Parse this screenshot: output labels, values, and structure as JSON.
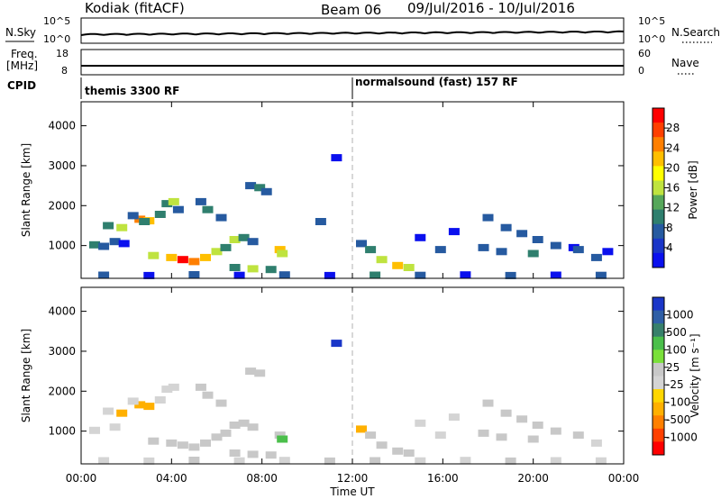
{
  "header": {
    "radar": "Kodiak (fitACF)",
    "beam": "Beam 06",
    "dates": "09/Jul/2016 - 10/Jul/2016"
  },
  "top_panel": {
    "left_label": "N.Sky",
    "right_label": "N.Search",
    "y_ticks_left": [
      "10^5",
      "10^0"
    ],
    "y_ticks_right": [
      "10^5",
      "10^0"
    ]
  },
  "freq_panel": {
    "left_label_1": "Freq.",
    "left_label_2": "[MHz]",
    "right_label": "Nave",
    "y_ticks_left": [
      "18",
      "8"
    ],
    "y_ticks_right": [
      "60",
      "0"
    ]
  },
  "cpid": {
    "label": "CPID",
    "segments": [
      {
        "name": "themis 3300 RF",
        "start_hour": 0
      },
      {
        "name": "normalsound (fast) 157 RF",
        "start_hour": 12
      }
    ]
  },
  "power_panel": {
    "ylabel": "Slant Range [km]",
    "colorbar_label": "Power [dB]",
    "colorbar_ticks": [
      "28",
      "24",
      "20",
      "16",
      "12",
      "8",
      "4"
    ],
    "colorbar_colors": [
      "#ff0000",
      "#ff3f00",
      "#ff7f00",
      "#ffbf00",
      "#ffff00",
      "#bfe33f",
      "#56a75a",
      "#2f7f6e",
      "#265aa0",
      "#1a36c8",
      "#0a10ee"
    ]
  },
  "velocity_panel": {
    "ylabel": "Slant Range [km]",
    "colorbar_label": "Velocity [m s⁻¹]",
    "colorbar_ticks": [
      "1000",
      "500",
      "100",
      "25",
      "-25",
      "-100",
      "-500",
      "-1000"
    ],
    "colorbar_colors": [
      "#1a36c8",
      "#2f5fa6",
      "#37806b",
      "#4bbf4b",
      "#7ae03a",
      "#c8c8c8",
      "#d4d4d4",
      "#ffd700",
      "#ffb000",
      "#ff8000",
      "#ff4000",
      "#ff0000"
    ]
  },
  "xaxis": {
    "xlabel": "Time UT",
    "ticks": [
      "00:00",
      "04:00",
      "08:00",
      "12:00",
      "16:00",
      "20:00",
      "00:00"
    ]
  },
  "chart_data": [
    {
      "type": "scatter",
      "title": "Power",
      "ylabel": "Slant Range [km]",
      "ylim": [
        180,
        4600
      ],
      "xlim_hours": [
        0,
        24
      ],
      "y_ticks": [
        1000,
        2000,
        3000,
        4000
      ],
      "series": [
        {
          "name": "",
          "points": [
            [
              0.6,
              1020,
              12
            ],
            [
              1.0,
              980,
              8
            ],
            [
              1.5,
              1100,
              8
            ],
            [
              1.9,
              1050,
              4
            ],
            [
              1.2,
              1500,
              12
            ],
            [
              1.8,
              1450,
              16
            ],
            [
              2.6,
              1660,
              24
            ],
            [
              3.0,
              1620,
              20
            ],
            [
              3.5,
              1780,
              12
            ],
            [
              2.3,
              1750,
              8
            ],
            [
              2.8,
              1600,
              12
            ],
            [
              3.8,
              2050,
              12
            ],
            [
              4.1,
              2100,
              16
            ],
            [
              4.3,
              1900,
              8
            ],
            [
              3.2,
              750,
              16
            ],
            [
              4.0,
              700,
              20
            ],
            [
              4.5,
              650,
              28
            ],
            [
              5.0,
              600,
              24
            ],
            [
              5.5,
              700,
              20
            ],
            [
              6.0,
              850,
              16
            ],
            [
              6.4,
              950,
              12
            ],
            [
              6.8,
              1150,
              16
            ],
            [
              7.2,
              1200,
              12
            ],
            [
              7.6,
              1100,
              8
            ],
            [
              5.3,
              2100,
              8
            ],
            [
              5.6,
              1900,
              12
            ],
            [
              6.2,
              1700,
              8
            ],
            [
              7.5,
              2500,
              8
            ],
            [
              7.9,
              2450,
              12
            ],
            [
              8.2,
              2350,
              8
            ],
            [
              8.8,
              900,
              20
            ],
            [
              8.9,
              800,
              16
            ],
            [
              6.8,
              450,
              12
            ],
            [
              7.6,
              420,
              16
            ],
            [
              8.4,
              400,
              12
            ],
            [
              10.6,
              1600,
              8
            ],
            [
              11.3,
              3200,
              4
            ],
            [
              12.4,
              1050,
              8
            ],
            [
              12.8,
              900,
              12
            ],
            [
              13.3,
              650,
              16
            ],
            [
              14.0,
              500,
              20
            ],
            [
              14.5,
              450,
              16
            ],
            [
              15.0,
              1200,
              4
            ],
            [
              15.9,
              900,
              8
            ],
            [
              16.5,
              1350,
              4
            ],
            [
              18.0,
              1700,
              8
            ],
            [
              18.8,
              1450,
              8
            ],
            [
              19.5,
              1300,
              8
            ],
            [
              20.2,
              1150,
              8
            ],
            [
              21.0,
              1000,
              8
            ],
            [
              21.8,
              950,
              4
            ],
            [
              23.3,
              850,
              4
            ],
            [
              17.8,
              950,
              8
            ],
            [
              18.6,
              850,
              8
            ],
            [
              20.0,
              800,
              12
            ],
            [
              22.0,
              900,
              8
            ],
            [
              22.8,
              700,
              8
            ],
            [
              1,
              260,
              8
            ],
            [
              3,
              250,
              4
            ],
            [
              5,
              270,
              8
            ],
            [
              7,
              255,
              4
            ],
            [
              9,
              265,
              8
            ],
            [
              11,
              250,
              4
            ],
            [
              13,
              260,
              12
            ],
            [
              15,
              255,
              8
            ],
            [
              17,
              265,
              4
            ],
            [
              19,
              250,
              8
            ],
            [
              21,
              260,
              4
            ],
            [
              23,
              255,
              8
            ]
          ]
        }
      ]
    },
    {
      "type": "scatter",
      "title": "Velocity",
      "ylabel": "Slant Range [km]",
      "ylim": [
        180,
        4600
      ],
      "xlim_hours": [
        0,
        24
      ],
      "y_ticks": [
        1000,
        2000,
        3000,
        4000
      ],
      "series": [
        {
          "name": "",
          "points": [
            [
              0.6,
              1020,
              -100
            ],
            [
              1.5,
              1100,
              -25
            ],
            [
              1.2,
              1500,
              -100
            ],
            [
              1.8,
              1450,
              -500
            ],
            [
              2.6,
              1660,
              -500
            ],
            [
              3.0,
              1620,
              -500
            ],
            [
              3.5,
              1780,
              -100
            ],
            [
              2.3,
              1750,
              -100
            ],
            [
              3.8,
              2050,
              -100
            ],
            [
              4.1,
              2100,
              -100
            ],
            [
              3.2,
              750,
              100
            ],
            [
              4.0,
              700,
              100
            ],
            [
              4.5,
              650,
              100
            ],
            [
              5.0,
              600,
              100
            ],
            [
              5.5,
              700,
              100
            ],
            [
              6.0,
              850,
              25
            ],
            [
              6.4,
              950,
              25
            ],
            [
              6.8,
              1150,
              25
            ],
            [
              7.2,
              1200,
              100
            ],
            [
              7.6,
              1100,
              25
            ],
            [
              5.3,
              2100,
              25
            ],
            [
              5.6,
              1900,
              25
            ],
            [
              6.2,
              1700,
              25
            ],
            [
              7.5,
              2500,
              25
            ],
            [
              7.9,
              2450,
              25
            ],
            [
              8.8,
              900,
              100
            ],
            [
              8.9,
              800,
              500
            ],
            [
              6.8,
              450,
              100
            ],
            [
              7.6,
              420,
              100
            ],
            [
              8.4,
              400,
              100
            ],
            [
              11.3,
              3200,
              1000
            ],
            [
              12.4,
              1050,
              -500
            ],
            [
              12.8,
              900,
              100
            ],
            [
              13.3,
              650,
              100
            ],
            [
              14.0,
              500,
              100
            ],
            [
              14.5,
              450,
              25
            ],
            [
              15.0,
              1200,
              -100
            ],
            [
              15.9,
              900,
              -100
            ],
            [
              16.5,
              1350,
              -100
            ],
            [
              18.0,
              1700,
              25
            ],
            [
              18.8,
              1450,
              25
            ],
            [
              19.5,
              1300,
              25
            ],
            [
              20.2,
              1150,
              25
            ],
            [
              21.0,
              1000,
              25
            ],
            [
              17.8,
              950,
              25
            ],
            [
              18.6,
              850,
              25
            ],
            [
              20.0,
              800,
              25
            ],
            [
              22.0,
              900,
              25
            ],
            [
              22.8,
              700,
              -100
            ],
            [
              1,
              260,
              -25
            ],
            [
              3,
              250,
              -100
            ],
            [
              5,
              270,
              25
            ],
            [
              7,
              255,
              -25
            ],
            [
              9,
              265,
              -100
            ],
            [
              11,
              250,
              25
            ],
            [
              13,
              260,
              100
            ],
            [
              15,
              255,
              -25
            ],
            [
              17,
              265,
              -100
            ],
            [
              19,
              250,
              25
            ],
            [
              21,
              260,
              -25
            ],
            [
              23,
              255,
              -100
            ]
          ]
        }
      ]
    }
  ]
}
